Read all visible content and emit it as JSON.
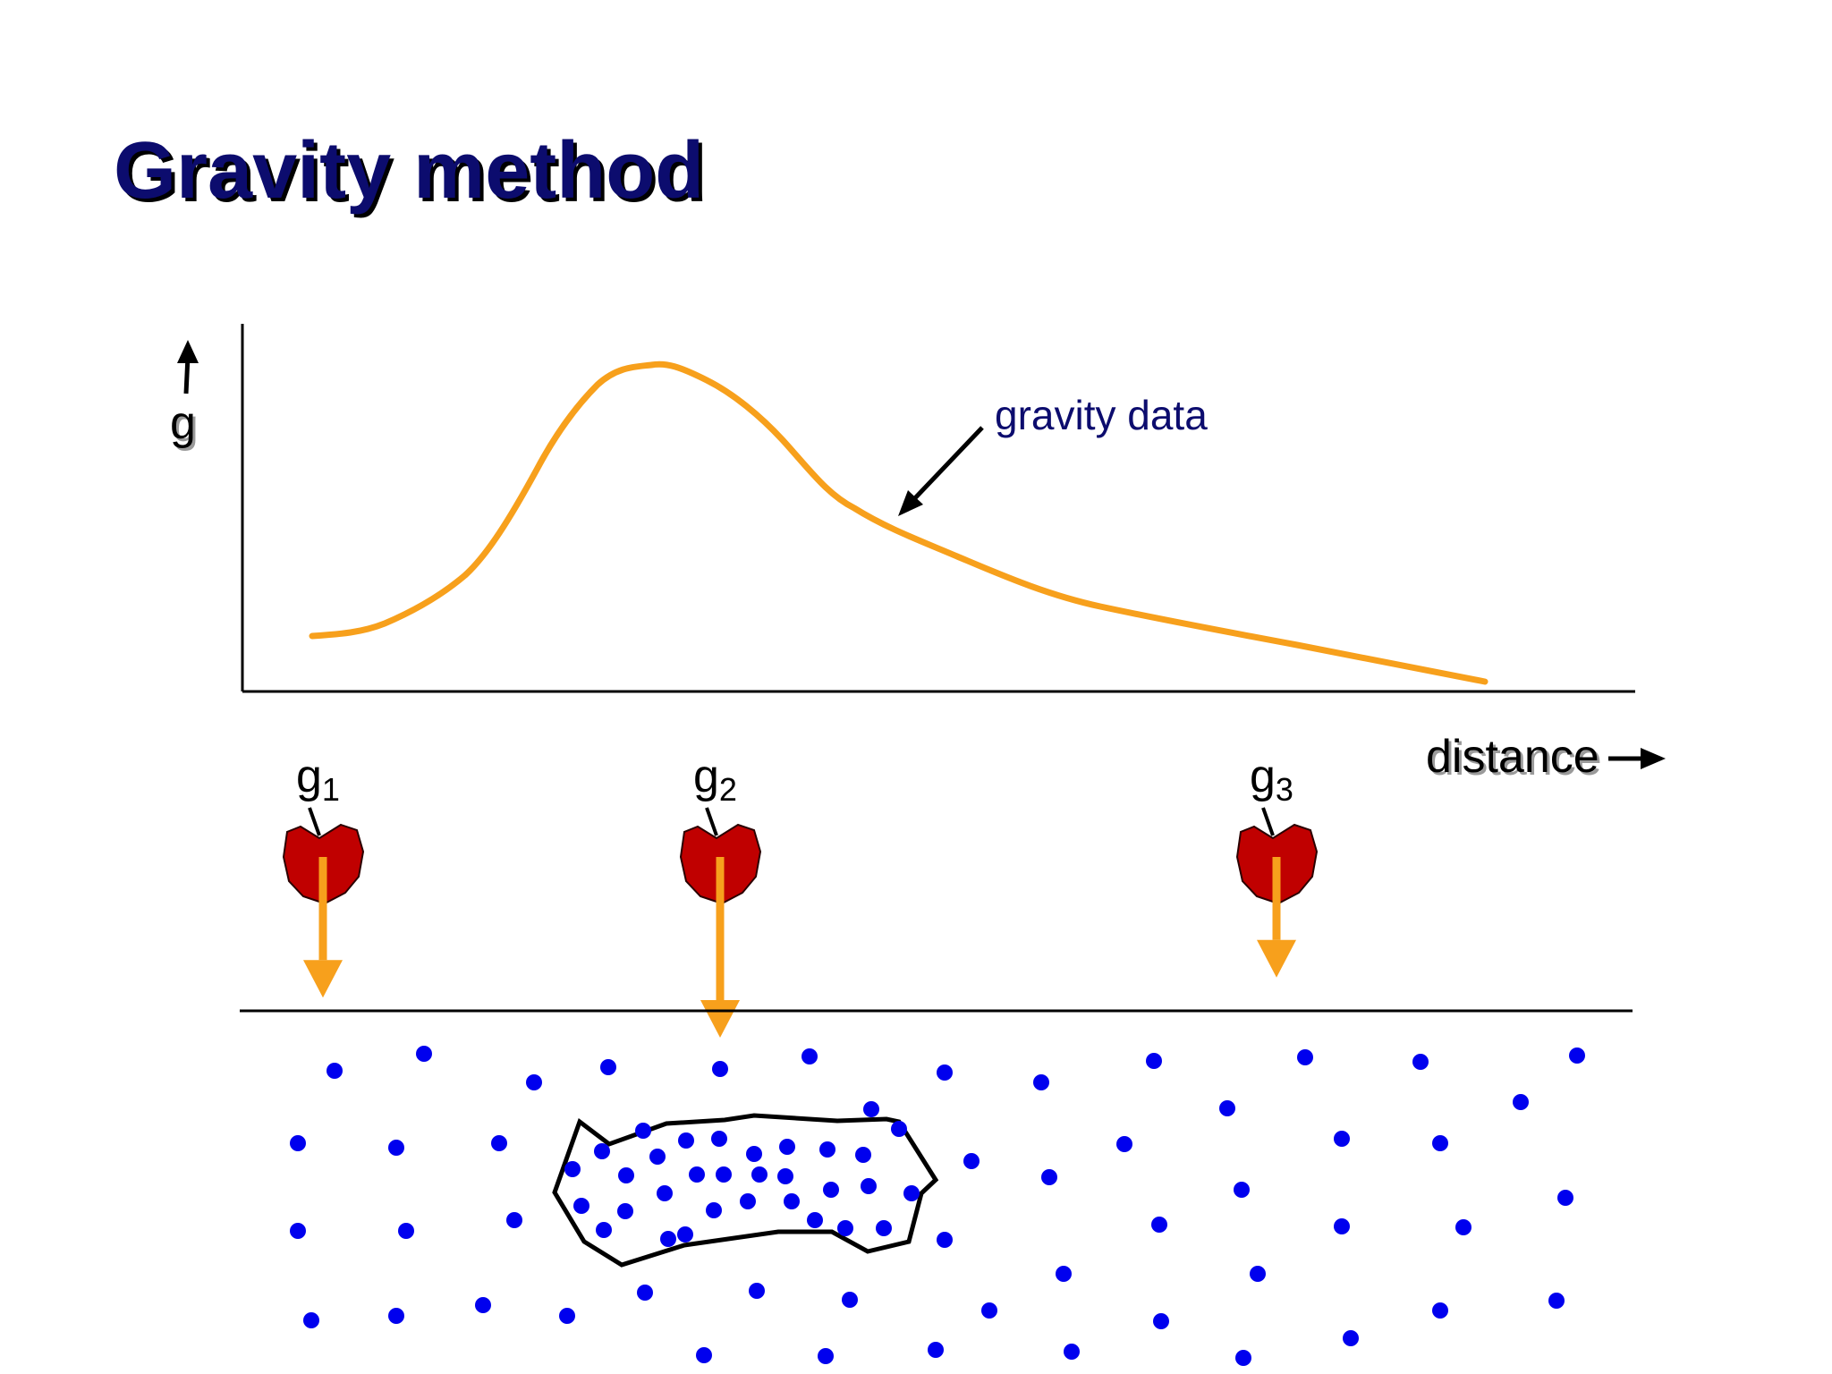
{
  "title": "Gravity method",
  "y_axis_label": "g",
  "x_axis_label": "distance",
  "curve_label": "gravity data",
  "stations": [
    {
      "base": "g",
      "subscript": "1",
      "arrow_strength": 0.72
    },
    {
      "base": "g",
      "subscript": "2",
      "arrow_strength": 1.0
    },
    {
      "base": "g",
      "subscript": "3",
      "arrow_strength": 0.58
    }
  ],
  "colors": {
    "title": "#0c0c6e",
    "curve": "#f7a01c",
    "arrow": "#f7a01c",
    "apple": "#c00000",
    "particle": "#0000ee",
    "annotation": "#0c0c6e"
  },
  "icons": {
    "station_marker": "apple-icon",
    "up_arrow": "arrow-up-icon",
    "right_arrow": "arrow-right-icon"
  }
}
